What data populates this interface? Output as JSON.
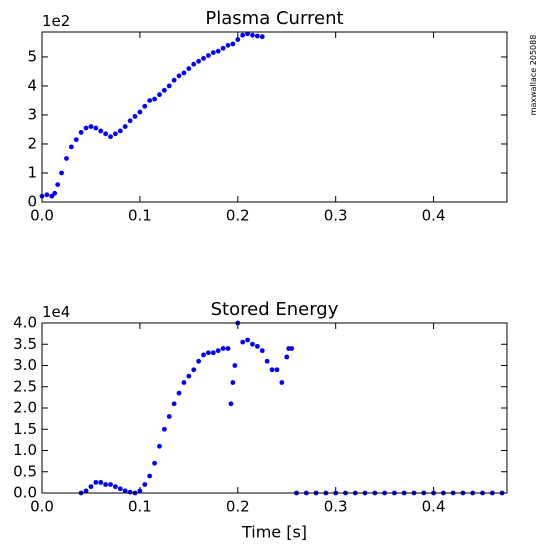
{
  "watermark": "maxwallace 205088",
  "chart_data": [
    {
      "type": "scatter",
      "title": "Plasma Current",
      "y_offset_label": "1e2",
      "color": "#0000ff",
      "x": [
        0.0,
        0.005,
        0.01,
        0.013,
        0.016,
        0.02,
        0.025,
        0.03,
        0.035,
        0.04,
        0.045,
        0.05,
        0.055,
        0.06,
        0.065,
        0.07,
        0.075,
        0.08,
        0.085,
        0.09,
        0.095,
        0.1,
        0.105,
        0.11,
        0.115,
        0.12,
        0.125,
        0.13,
        0.135,
        0.14,
        0.145,
        0.15,
        0.155,
        0.16,
        0.165,
        0.17,
        0.175,
        0.18,
        0.185,
        0.19,
        0.195,
        0.2,
        0.205,
        0.21,
        0.215,
        0.22,
        0.225
      ],
      "values": [
        0.2,
        0.25,
        0.2,
        0.3,
        0.6,
        1.0,
        1.5,
        1.9,
        2.15,
        2.4,
        2.55,
        2.6,
        2.55,
        2.45,
        2.35,
        2.25,
        2.35,
        2.45,
        2.6,
        2.8,
        2.95,
        3.1,
        3.3,
        3.5,
        3.55,
        3.7,
        3.85,
        4.0,
        4.2,
        4.35,
        4.45,
        4.6,
        4.75,
        4.85,
        4.95,
        5.05,
        5.15,
        5.2,
        5.3,
        5.4,
        5.45,
        5.6,
        5.75,
        5.8,
        5.75,
        5.72,
        5.7
      ],
      "xlim": [
        0,
        0.475
      ],
      "ylim": [
        0,
        5.86
      ],
      "xticks": [
        {
          "value": 0,
          "label": "0.0"
        },
        0.1,
        0.2,
        0.3,
        0.4
      ],
      "yticks": [
        0,
        1,
        2,
        3,
        4,
        5
      ]
    },
    {
      "type": "scatter",
      "title": "Stored Energy",
      "y_offset_label": "1e4",
      "xlabel": "Time [s]",
      "color": "#0000ff",
      "x": [
        0.04,
        0.045,
        0.05,
        0.055,
        0.06,
        0.065,
        0.07,
        0.075,
        0.08,
        0.085,
        0.09,
        0.095,
        0.1,
        0.105,
        0.11,
        0.115,
        0.12,
        0.125,
        0.13,
        0.135,
        0.14,
        0.145,
        0.15,
        0.155,
        0.16,
        0.165,
        0.17,
        0.175,
        0.18,
        0.185,
        0.19,
        0.193,
        0.195,
        0.197,
        0.2,
        0.205,
        0.21,
        0.215,
        0.22,
        0.225,
        0.23,
        0.235,
        0.24,
        0.245,
        0.25,
        0.252,
        0.255,
        0.26,
        0.27,
        0.28,
        0.29,
        0.3,
        0.31,
        0.32,
        0.33,
        0.34,
        0.35,
        0.36,
        0.37,
        0.38,
        0.39,
        0.4,
        0.41,
        0.42,
        0.43,
        0.44,
        0.45,
        0.46,
        0.47
      ],
      "values": [
        0,
        0.05,
        0.15,
        0.25,
        0.25,
        0.2,
        0.2,
        0.15,
        0.1,
        0.05,
        0.02,
        0,
        0.05,
        0.2,
        0.4,
        0.7,
        1.1,
        1.5,
        1.8,
        2.1,
        2.35,
        2.6,
        2.75,
        2.9,
        3.1,
        3.25,
        3.3,
        3.3,
        3.35,
        3.4,
        3.4,
        2.1,
        2.6,
        3.0,
        4.0,
        3.55,
        3.6,
        3.5,
        3.45,
        3.35,
        3.1,
        2.9,
        2.9,
        2.6,
        3.2,
        3.4,
        3.4,
        0,
        0,
        0,
        0,
        0,
        0,
        0,
        0,
        0,
        0,
        0,
        0,
        0,
        0,
        0,
        0,
        0,
        0,
        0,
        0,
        0,
        0
      ],
      "xlim": [
        0,
        0.475
      ],
      "ylim": [
        0,
        4.0
      ],
      "xticks": [
        {
          "value": 0,
          "label": "0.0"
        },
        0.1,
        0.2,
        0.3,
        0.4
      ],
      "yticks": [
        {
          "value": 0,
          "label": "0.0"
        },
        0.5,
        {
          "value": 1,
          "label": "1.0"
        },
        1.5,
        {
          "value": 2,
          "label": "2.0"
        },
        2.5,
        {
          "value": 3,
          "label": "3.0"
        },
        3.5,
        {
          "value": 4,
          "label": "4.0"
        }
      ]
    }
  ]
}
